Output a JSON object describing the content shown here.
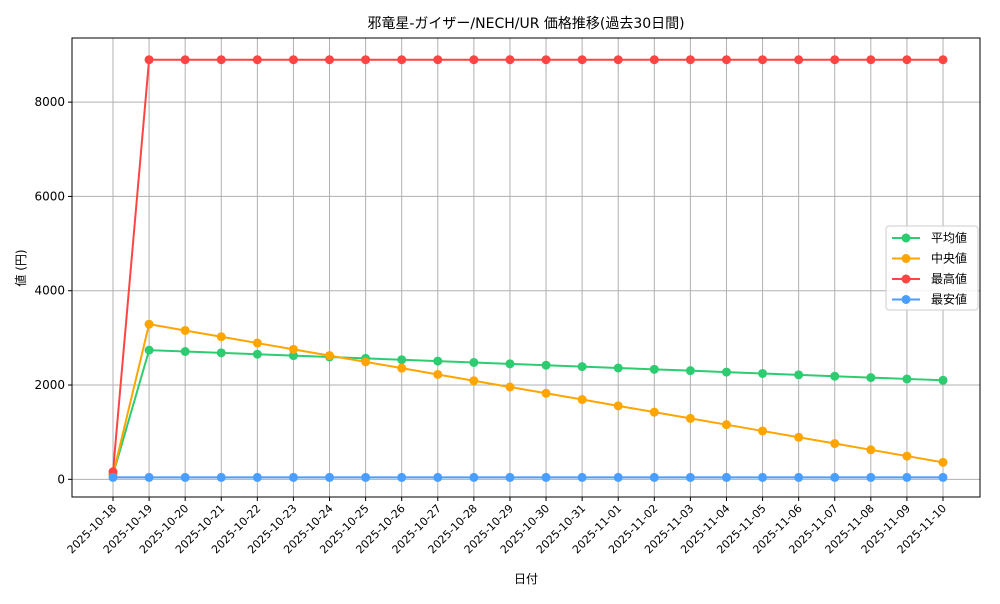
{
  "chart_data": {
    "type": "line",
    "title": "邪竜星-ガイザー/NECH/UR 価格推移(過去30日間)",
    "xlabel": "日付",
    "ylabel": "値 (円)",
    "ylim": [
      -375,
      9360
    ],
    "yticks": [
      0,
      2000,
      4000,
      6000,
      8000
    ],
    "grid": true,
    "legend_position": "center-right",
    "x": [
      "2025-10-18",
      "2025-10-19",
      "2025-10-20",
      "2025-10-21",
      "2025-10-22",
      "2025-10-23",
      "2025-10-24",
      "2025-10-25",
      "2025-10-26",
      "2025-10-27",
      "2025-10-28",
      "2025-10-29",
      "2025-10-30",
      "2025-10-31",
      "2025-11-01",
      "2025-11-02",
      "2025-11-03",
      "2025-11-04",
      "2025-11-05",
      "2025-11-06",
      "2025-11-07",
      "2025-11-08",
      "2025-11-09",
      "2025-11-10"
    ],
    "series": [
      {
        "name": "平均値",
        "color": "#2ecc71",
        "values": [
          100,
          2740,
          2711,
          2682,
          2653,
          2624,
          2595,
          2565,
          2536,
          2507,
          2478,
          2449,
          2420,
          2391,
          2362,
          2333,
          2304,
          2274,
          2245,
          2216,
          2187,
          2158,
          2129,
          2100
        ]
      },
      {
        "name": "中央値",
        "color": "#ffa500",
        "values": [
          100,
          3290,
          3157,
          3024,
          2890,
          2757,
          2624,
          2491,
          2358,
          2224,
          2091,
          1958,
          1825,
          1692,
          1558,
          1425,
          1292,
          1159,
          1026,
          892,
          759,
          626,
          493,
          360
        ]
      },
      {
        "name": "最高値",
        "color": "#ff4444",
        "values": [
          160,
          8900,
          8900,
          8900,
          8900,
          8900,
          8900,
          8900,
          8900,
          8900,
          8900,
          8900,
          8900,
          8900,
          8900,
          8900,
          8900,
          8900,
          8900,
          8900,
          8900,
          8900,
          8900,
          8900
        ]
      },
      {
        "name": "最安値",
        "color": "#4a9eff",
        "values": [
          40,
          40,
          40,
          40,
          40,
          40,
          40,
          40,
          40,
          40,
          40,
          40,
          40,
          40,
          40,
          40,
          40,
          40,
          40,
          40,
          40,
          40,
          40,
          40
        ]
      }
    ]
  }
}
